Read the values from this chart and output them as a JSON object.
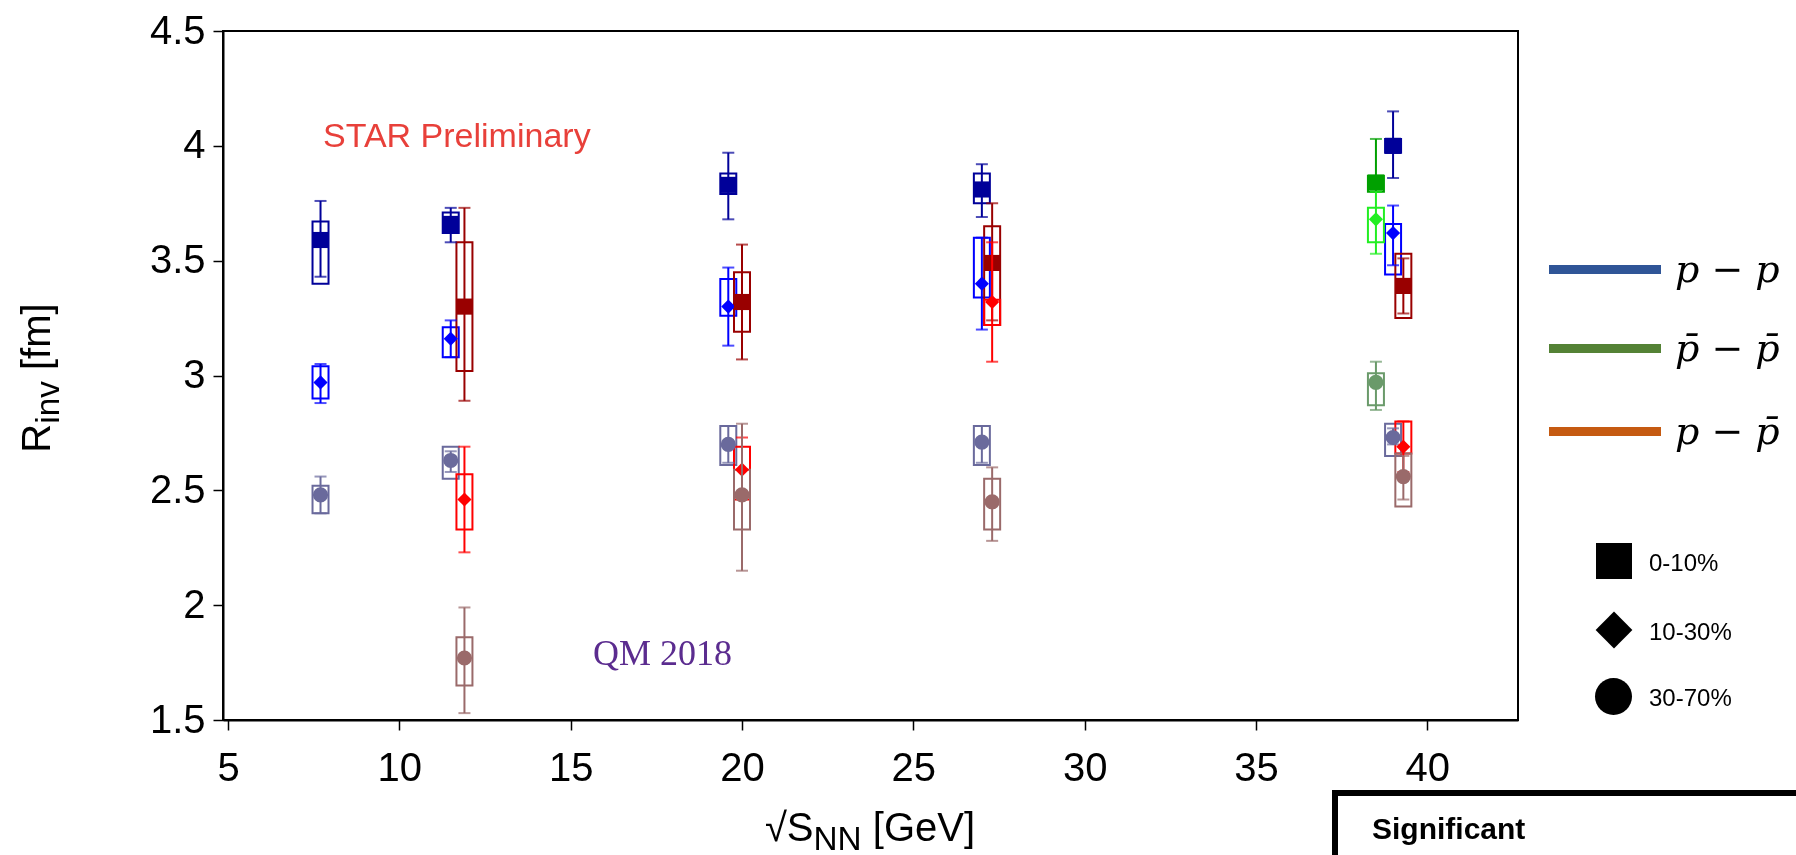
{
  "chart_data": {
    "type": "scatter",
    "xlabel": "√S$_{NN}$ [GeV]",
    "ylabel": "R$_{inv}$ [fm]",
    "xlim": [
      5,
      42.5
    ],
    "xticks": [
      5,
      10,
      15,
      20,
      25,
      30,
      35,
      40
    ],
    "ylim": [
      1.5,
      4.5
    ],
    "yticks": [
      1.5,
      2,
      2.5,
      3,
      3.5,
      4,
      4.5
    ],
    "grid": false,
    "annotations": [
      "STAR Preliminary",
      "QM 2018",
      "p − p",
      "p̄ − p̄",
      "p − p̄",
      "0-10%",
      "10-30%",
      "30-70%",
      "Significant"
    ],
    "series": [
      {
        "marker": "square",
        "color": "#000099",
        "x": [
          7.7,
          11.5,
          19.6,
          27.0,
          39.0
        ],
        "values": [
          3.59,
          3.66,
          3.83,
          3.81,
          4.0
        ],
        "errors": [
          [
            3.43,
            3.76
          ],
          [
            3.58,
            3.73
          ],
          [
            3.68,
            3.97
          ],
          [
            3.69,
            3.92
          ],
          [
            3.86,
            4.15
          ]
        ]
      },
      {
        "marker": "diamond",
        "color": "#0000ff",
        "x": [
          7.7,
          11.5,
          19.6,
          27.0,
          39.0
        ],
        "values": [
          2.97,
          3.16,
          3.3,
          3.4,
          3.62
        ],
        "errors": [
          [
            2.88,
            3.05
          ],
          [
            3.08,
            3.24
          ],
          [
            3.13,
            3.47
          ],
          [
            3.2,
            3.6
          ],
          [
            3.48,
            3.74
          ]
        ]
      },
      {
        "marker": "circle",
        "color": "#6a6a9c",
        "x": [
          7.7,
          11.5,
          19.6,
          27.0,
          39.0
        ],
        "values": [
          2.48,
          2.63,
          2.7,
          2.71,
          2.73
        ],
        "errors": [
          [
            2.4,
            2.56
          ],
          [
            2.58,
            2.67
          ],
          [
            2.62,
            2.78
          ],
          [
            2.62,
            2.78
          ],
          [
            2.7,
            2.77
          ]
        ]
      },
      {
        "marker": "square",
        "color": "#00a000",
        "x": [
          38.5
        ],
        "values": [
          3.84
        ],
        "errors": [
          [
            3.8,
            4.03
          ]
        ]
      },
      {
        "marker": "diamond",
        "color": "#22ee22",
        "x": [
          38.5
        ],
        "values": [
          3.68
        ],
        "errors": [
          [
            3.53,
            3.8
          ]
        ]
      },
      {
        "marker": "circle",
        "color": "#6a9a6a",
        "x": [
          38.5
        ],
        "values": [
          2.97
        ],
        "errors": [
          [
            2.85,
            3.06
          ]
        ]
      },
      {
        "marker": "square",
        "color": "#990000",
        "x": [
          11.9,
          20.0,
          27.3,
          39.3
        ],
        "values": [
          3.3,
          3.32,
          3.49,
          3.39
        ],
        "errors": [
          [
            2.89,
            3.73
          ],
          [
            3.07,
            3.57
          ],
          [
            3.24,
            3.75
          ],
          [
            3.27,
            3.51
          ]
        ]
      },
      {
        "marker": "diamond",
        "color": "#ff0000",
        "x": [
          11.9,
          20.0,
          27.3,
          39.3
        ],
        "values": [
          2.46,
          2.59,
          3.32,
          2.69
        ],
        "errors": [
          [
            2.23,
            2.69
          ],
          [
            2.59,
            2.73
          ],
          [
            3.06,
            3.58
          ],
          [
            2.58,
            2.8
          ]
        ]
      },
      {
        "marker": "circle",
        "color": "#9a6a6a",
        "x": [
          11.9,
          20.0,
          27.3,
          39.3
        ],
        "values": [
          1.77,
          2.48,
          2.45,
          2.56
        ],
        "errors": [
          [
            1.53,
            1.99
          ],
          [
            2.15,
            2.79
          ],
          [
            2.28,
            2.6
          ],
          [
            2.46,
            2.65
          ]
        ]
      },
      {
        "type": "bar",
        "color": "#000099",
        "x": [
          7.7,
          11.5,
          19.6,
          27.0,
          39.0
        ],
        "base": [
          3.4,
          3.62,
          3.79,
          3.75,
          3.97
        ],
        "values": [
          0.27,
          0.09,
          0.09,
          0.13,
          0.06
        ]
      },
      {
        "type": "bar",
        "color": "#0000ff",
        "x": [
          7.7,
          11.5,
          19.6,
          27.0,
          39.0
        ],
        "base": [
          2.9,
          3.08,
          3.26,
          3.34,
          3.44
        ],
        "values": [
          0.14,
          0.13,
          0.16,
          0.26,
          0.22
        ]
      },
      {
        "type": "bar",
        "color": "#6a6a9c",
        "x": [
          7.7,
          11.5,
          19.6,
          27.0,
          39.0
        ],
        "base": [
          2.4,
          2.55,
          2.61,
          2.61,
          2.65
        ],
        "values": [
          0.12,
          0.14,
          0.17,
          0.17,
          0.14
        ]
      },
      {
        "type": "bar",
        "color": "#00a000",
        "x": [
          38.5
        ],
        "base": [
          3.8
        ],
        "values": [
          0.07
        ]
      },
      {
        "type": "bar",
        "color": "#22ee22",
        "x": [
          38.5
        ],
        "base": [
          3.58
        ],
        "values": [
          0.15
        ]
      },
      {
        "type": "bar",
        "color": "#6a9a6a",
        "x": [
          38.5
        ],
        "base": [
          2.87
        ],
        "values": [
          0.14
        ]
      },
      {
        "type": "bar",
        "color": "#990000",
        "x": [
          11.9,
          20.0,
          27.3,
          39.3
        ],
        "base": [
          3.02,
          3.19,
          3.22,
          3.25
        ],
        "values": [
          0.56,
          0.26,
          0.43,
          0.28
        ]
      },
      {
        "type": "bar",
        "color": "#ff0000",
        "x": [
          11.9,
          20.0,
          27.3,
          39.3
        ],
        "base": [
          2.33,
          2.46,
          3.22,
          2.66
        ],
        "values": [
          0.24,
          0.23,
          0.11,
          0.14
        ]
      },
      {
        "type": "bar",
        "color": "#9a6a6a",
        "x": [
          11.9,
          20.0,
          27.3,
          39.3
        ],
        "base": [
          1.65,
          2.33,
          2.33,
          2.43
        ],
        "values": [
          0.21,
          0.26,
          0.22,
          0.23
        ]
      }
    ]
  }
}
